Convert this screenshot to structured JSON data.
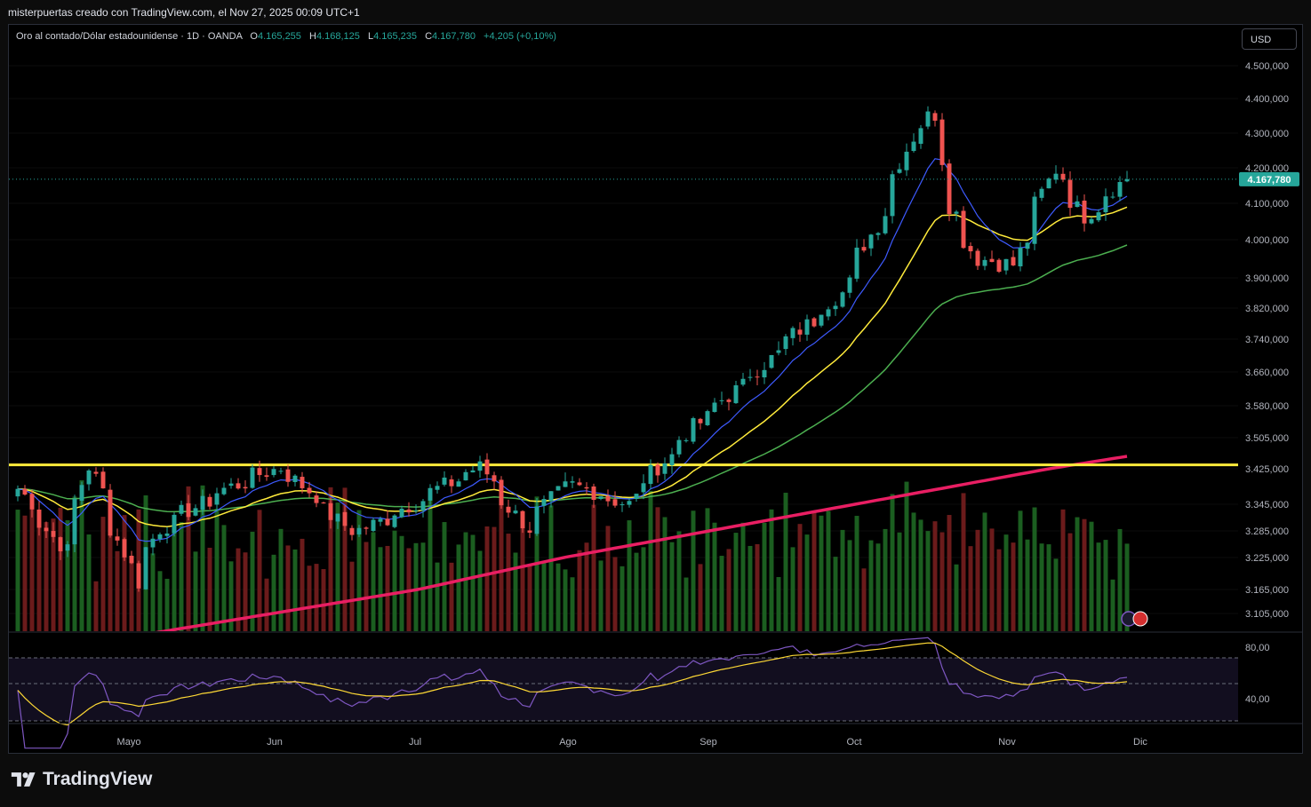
{
  "caption": "misterpuertas creado con TradingView.com, el Nov 27, 2025 00:09 UTC+1",
  "legend": {
    "symbol": "Oro al contado/Dólar estadounidense · 1D · OANDA",
    "o_label": "O",
    "o_value": "4.165,255",
    "h_label": "H",
    "h_value": "4.168,125",
    "l_label": "L",
    "l_value": "4.165,235",
    "c_label": "C",
    "c_value": "4.167,780",
    "change": "+4,205 (+0,10%)"
  },
  "currency_button": "USD",
  "brand": "TradingView",
  "colors": {
    "up": "#26a69a",
    "down": "#ef5350",
    "vol_up": "#1b5e20",
    "vol_down": "#6b1b1b",
    "ema_fast": "#3d5afe",
    "ema_mid": "#ffeb3b",
    "ema_slow": "#4caf50",
    "ema_long": "#e91e63",
    "hline": "#ffeb3b",
    "rsi": "#7e57c2",
    "rsi_ma": "#fdd835",
    "last_price_bg": "#26a69a"
  },
  "chart_data": {
    "type": "candlestick",
    "title": "Oro al contado/Dólar estadounidense · 1D · OANDA",
    "price_axis": {
      "ticks": [
        "4.500,000",
        "4.400,000",
        "4.300,000",
        "4.200,000",
        "4.100,000",
        "4.000,000",
        "3.900,000",
        "3.820,000",
        "3.740,000",
        "3.660,000",
        "3.580,000",
        "3.505,000",
        "3.425,000",
        "3.345,000",
        "3.285,000",
        "3.225,000",
        "3.165,000",
        "3.105,000"
      ],
      "last_price_label": "4.167,780",
      "last_price": 4167.78
    },
    "time_axis": {
      "labels": [
        "Mayo",
        "Jun",
        "Jul",
        "Ago",
        "Sep",
        "Oct",
        "Nov",
        "Dic"
      ]
    },
    "horizontal_line": 3435,
    "rsi_panel": {
      "levels": [
        "80,00",
        "40,00"
      ],
      "upper_band": 70,
      "lower_band": 30
    },
    "keypoints": [
      {
        "date": "Apr 22",
        "close": 3380
      },
      {
        "date": "May 01",
        "close": 3240
      },
      {
        "date": "May 06",
        "close": 3430
      },
      {
        "date": "May 15",
        "close": 3180
      },
      {
        "date": "May 20",
        "close": 3290
      },
      {
        "date": "Jun 02",
        "close": 3380
      },
      {
        "date": "Jun 13",
        "close": 3432
      },
      {
        "date": "Jun 27",
        "close": 3275
      },
      {
        "date": "Jul 22",
        "close": 3430
      },
      {
        "date": "Jul 31",
        "close": 3290
      },
      {
        "date": "Aug 08",
        "close": 3395
      },
      {
        "date": "Aug 20",
        "close": 3345
      },
      {
        "date": "Sep 02",
        "close": 3530
      },
      {
        "date": "Sep 16",
        "close": 3680
      },
      {
        "date": "Oct 01",
        "close": 3860
      },
      {
        "date": "Oct 08",
        "close": 4040
      },
      {
        "date": "Oct 16",
        "close": 4325
      },
      {
        "date": "Oct 20",
        "close": 4355
      },
      {
        "date": "Oct 22",
        "close": 4095
      },
      {
        "date": "Oct 28",
        "close": 3950
      },
      {
        "date": "Nov 04",
        "close": 3935
      },
      {
        "date": "Nov 12",
        "close": 4195
      },
      {
        "date": "Nov 18",
        "close": 4065
      },
      {
        "date": "Nov 26",
        "close": 4167.78
      }
    ],
    "indicators": [
      "EMA fast (blue)",
      "EMA (yellow)",
      "EMA (green)",
      "EMA long (pink)",
      "Volume",
      "RSI"
    ]
  }
}
